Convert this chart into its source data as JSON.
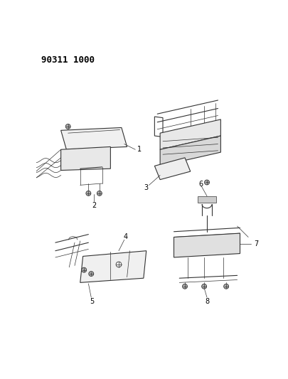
{
  "title": "90311 1000",
  "background_color": "#ffffff",
  "line_color": "#333333",
  "figsize": [
    4.06,
    5.33
  ],
  "dpi": 100,
  "font_color": "#000000",
  "title_fontsize": 9,
  "label_fontsize": 7
}
